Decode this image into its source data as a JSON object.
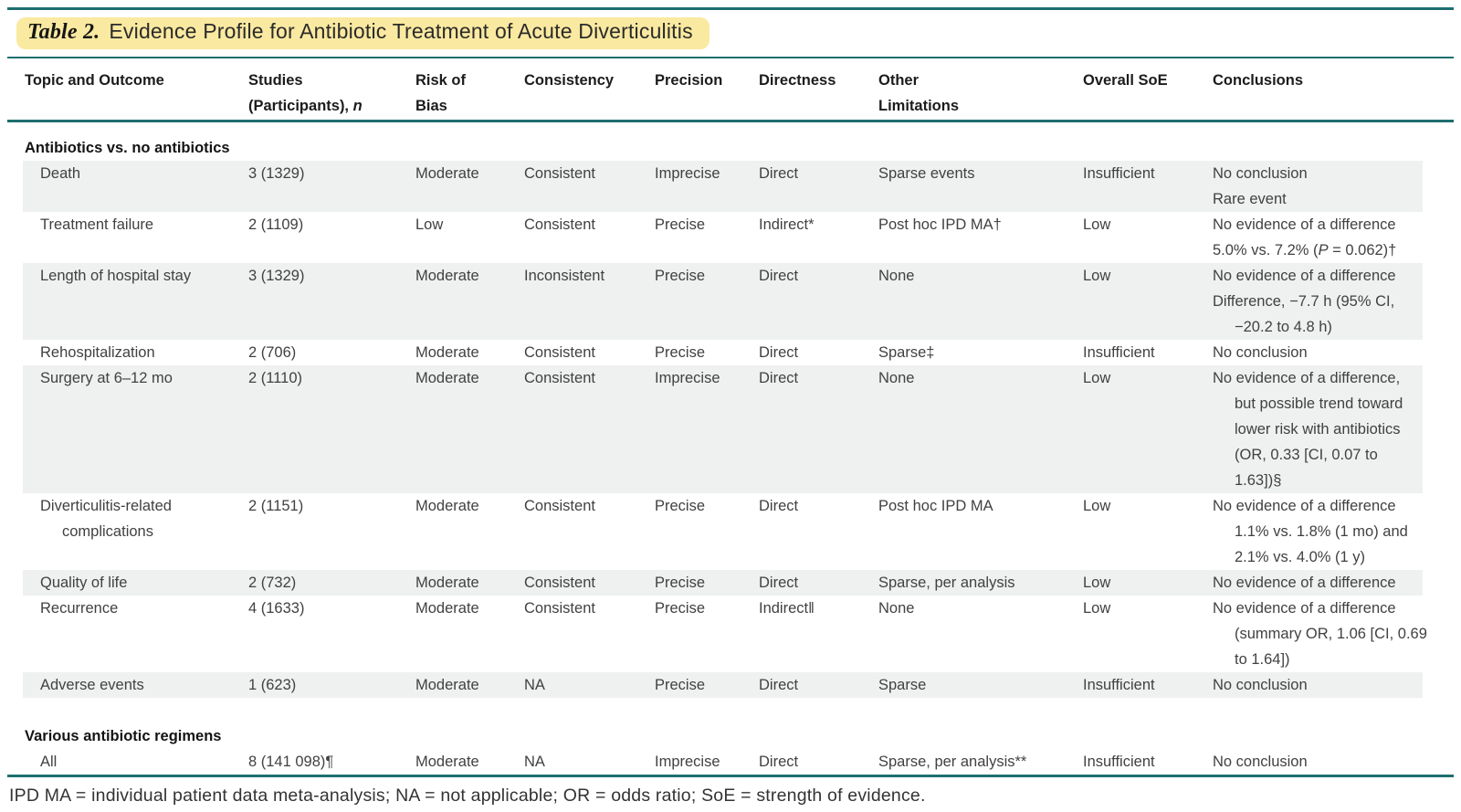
{
  "colors": {
    "teal": "#1e6f6f",
    "highlight": "#fae9a0",
    "row_shade": "#eef1ef"
  },
  "title": {
    "label": "Table 2.",
    "text": "Evidence Profile for Antibiotic Treatment of Acute Diverticulitis"
  },
  "header": {
    "columns": [
      {
        "key": "topic-and-outcome",
        "lines": [
          "Topic and Outcome"
        ]
      },
      {
        "key": "studies",
        "lines": [
          "Studies",
          {
            "parts": [
              {
                "t": "(Participants), "
              },
              {
                "t": "n",
                "i": true
              }
            ]
          }
        ]
      },
      {
        "key": "risk-of-bias",
        "lines": [
          "Risk of",
          "Bias"
        ]
      },
      {
        "key": "consistency",
        "lines": [
          "Consistency"
        ]
      },
      {
        "key": "precision",
        "lines": [
          "Precision"
        ]
      },
      {
        "key": "directness",
        "lines": [
          "Directness"
        ]
      },
      {
        "key": "other-limitations",
        "lines": [
          "Other",
          "Limitations"
        ]
      },
      {
        "key": "overall-soe",
        "lines": [
          "Overall SoE"
        ]
      },
      {
        "key": "conclusions",
        "lines": [
          "Conclusions"
        ]
      }
    ]
  },
  "sections": [
    {
      "label": "Antibiotics vs. no antibiotics",
      "gap_before": false,
      "rows": [
        {
          "shaded": true,
          "topic": [
            "Death"
          ],
          "studies": "3 (1329)",
          "risk_of_bias": "Moderate",
          "consistency": "Consistent",
          "precision": "Imprecise",
          "directness": "Direct",
          "other_limitations": "Sparse events",
          "overall_soe": "Insufficient",
          "conclusions": [
            "No conclusion",
            "Rare event"
          ]
        },
        {
          "shaded": false,
          "topic": [
            "Treatment failure"
          ],
          "studies": "2 (1109)",
          "risk_of_bias": "Low",
          "consistency": "Consistent",
          "precision": "Precise",
          "directness": "Indirect*",
          "other_limitations": "Post hoc IPD MA†",
          "overall_soe": "Low",
          "conclusions": [
            "No evidence of a difference",
            {
              "parts": [
                {
                  "t": "5.0% vs. 7.2% ("
                },
                {
                  "t": "P",
                  "i": true
                },
                {
                  "t": " = 0.062)†"
                }
              ]
            }
          ]
        },
        {
          "shaded": true,
          "topic": [
            "Length of hospital stay"
          ],
          "studies": "3 (1329)",
          "risk_of_bias": "Moderate",
          "consistency": "Inconsistent",
          "precision": "Precise",
          "directness": "Direct",
          "other_limitations": "None",
          "overall_soe": "Low",
          "conclusions": [
            "No evidence of a difference",
            "Difference, −7.7 h (95% CI,",
            {
              "t": "−20.2 to 4.8 h)",
              "indent": true
            }
          ]
        },
        {
          "shaded": false,
          "topic": [
            "Rehospitalization"
          ],
          "studies": "2 (706)",
          "risk_of_bias": "Moderate",
          "consistency": "Consistent",
          "precision": "Precise",
          "directness": "Direct",
          "other_limitations": "Sparse‡",
          "overall_soe": "Insufficient",
          "conclusions": [
            "No conclusion"
          ]
        },
        {
          "shaded": true,
          "topic": [
            "Surgery at 6–12 mo"
          ],
          "studies": "2 (1110)",
          "risk_of_bias": "Moderate",
          "consistency": "Consistent",
          "precision": "Imprecise",
          "directness": "Direct",
          "other_limitations": "None",
          "overall_soe": "Low",
          "conclusions": [
            "No evidence of a difference,",
            {
              "t": "but possible trend toward",
              "indent": true
            },
            {
              "t": "lower risk with antibiotics",
              "indent": true
            },
            {
              "t": "(OR, 0.33 [CI, 0.07 to",
              "indent": true
            },
            {
              "t": "1.63])§",
              "indent": true
            }
          ]
        },
        {
          "shaded": false,
          "topic": [
            "Diverticulitis-related",
            {
              "t": "complications",
              "indent": true
            }
          ],
          "studies": "2 (1151)",
          "risk_of_bias": "Moderate",
          "consistency": "Consistent",
          "precision": "Precise",
          "directness": "Direct",
          "other_limitations": "Post hoc IPD MA",
          "overall_soe": "Low",
          "conclusions": [
            "No evidence of a difference",
            {
              "t": "1.1% vs. 1.8% (1 mo) and",
              "indent": true
            },
            {
              "t": "2.1% vs. 4.0% (1 y)",
              "indent": true
            }
          ]
        },
        {
          "shaded": true,
          "topic": [
            "Quality of life"
          ],
          "studies": "2 (732)",
          "risk_of_bias": "Moderate",
          "consistency": "Consistent",
          "precision": "Precise",
          "directness": "Direct",
          "other_limitations": "Sparse, per analysis",
          "overall_soe": "Low",
          "conclusions": [
            "No evidence of a difference"
          ]
        },
        {
          "shaded": false,
          "topic": [
            "Recurrence"
          ],
          "studies": "4 (1633)",
          "risk_of_bias": "Moderate",
          "consistency": "Consistent",
          "precision": "Precise",
          "directness": "Indirect‖",
          "other_limitations": "None",
          "overall_soe": "Low",
          "conclusions": [
            "No evidence of a difference",
            {
              "t": "(summary OR, 1.06 [CI, 0.69",
              "indent": true
            },
            {
              "t": "to 1.64])",
              "indent": true
            }
          ]
        },
        {
          "shaded": true,
          "topic": [
            "Adverse events"
          ],
          "studies": "1 (623)",
          "risk_of_bias": "Moderate",
          "consistency": "NA",
          "precision": "Precise",
          "directness": "Direct",
          "other_limitations": "Sparse",
          "overall_soe": "Insufficient",
          "conclusions": [
            "No conclusion"
          ]
        }
      ]
    },
    {
      "label": "Various antibiotic regimens",
      "gap_before": true,
      "rows": [
        {
          "shaded": false,
          "topic": [
            "All"
          ],
          "studies": "8 (141 098)¶",
          "risk_of_bias": "Moderate",
          "consistency": "NA",
          "precision": "Imprecise",
          "directness": "Direct",
          "other_limitations": "Sparse, per analysis**",
          "overall_soe": "Insufficient",
          "conclusions": [
            "No conclusion"
          ]
        }
      ]
    }
  ],
  "footnote": "IPD MA = individual patient data meta-analysis; NA = not applicable; OR = odds ratio; SoE = strength of evidence."
}
